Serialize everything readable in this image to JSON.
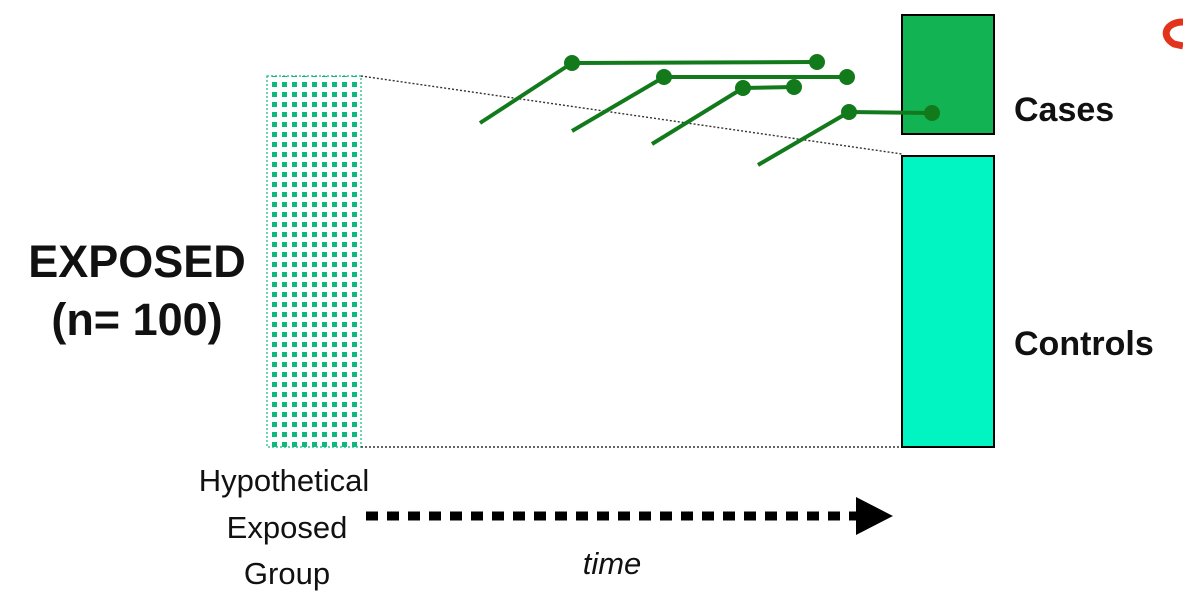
{
  "labels": {
    "exposed": "EXPOSED",
    "n": "(n= 100)",
    "cases": "Cases",
    "controls": "Controls",
    "hypothetical_line1": "Hypothetical",
    "hypothetical_line2": "Exposed",
    "hypothetical_line3": "Group",
    "time": "time"
  },
  "colors": {
    "cases_fill": "#12b352",
    "controls_fill": "#00f5c3",
    "dots": "#0fb97e",
    "lines": "#137a1c",
    "text": "#111111",
    "partial_shape": "#e2341c"
  }
}
